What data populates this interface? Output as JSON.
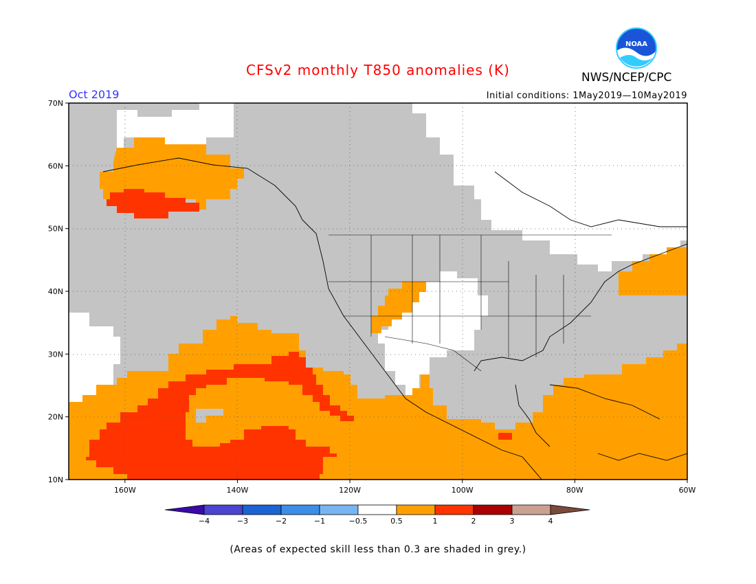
{
  "title": "CFSv2 monthly T850 anomalies (K)",
  "valid_month": "Oct 2019",
  "initial_conditions": "Initial conditions: 1May2019—10May2019",
  "agency": "NWS/NCEP/CPC",
  "logo_text": "NOAA",
  "footnote": "(Areas of expected skill less than 0.3 are shaded in grey.)",
  "map": {
    "lon_range": [
      -170,
      -60
    ],
    "lat_range": [
      10,
      70
    ],
    "lat_labels": [
      "70N",
      "60N",
      "50N",
      "40N",
      "30N",
      "20N",
      "10N"
    ],
    "lon_labels": [
      "160W",
      "140W",
      "120W",
      "100W",
      "80W",
      "60W"
    ],
    "grey_color": "#c4c4c4"
  },
  "colorbar": {
    "labels": [
      "−4",
      "−3",
      "−2",
      "−1",
      "−0.5",
      "0.5",
      "1",
      "2",
      "3",
      "4"
    ],
    "colors": [
      "#3a0aa8",
      "#4a44d0",
      "#1c64d4",
      "#3c8ee8",
      "#78b4f4",
      "#ffffff",
      "#ffa000",
      "#ff3300",
      "#aa0000",
      "#cca090",
      "#7a4a3a"
    ]
  }
}
